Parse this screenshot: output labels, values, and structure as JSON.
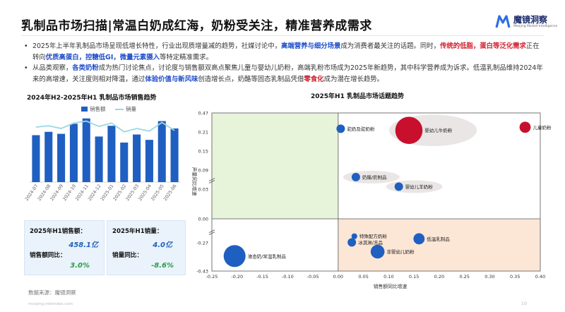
{
  "header": {
    "title": "乳制品市场扫描|常温白奶成红海，奶粉受关注，精准营养成需求",
    "logo_cn": "魔镜洞察",
    "logo_en": "Moojing Market Intelligence"
  },
  "bullets": {
    "dot": "•",
    "b1": {
      "t1": "2025年上半年乳制品市场呈现低增长特性，行业出现质增量减的趋势，社媒讨论中，",
      "h1": "高端营养与细分场景",
      "t2": "成为消费者最关注的话题。同时，",
      "h2": "传统的低脂，蛋白等泛化需求",
      "t3": "正在转向",
      "h3": "优质高蛋白，控糖低GI，微量元素摄入",
      "t4": "等特定精准需求。"
    },
    "b2": {
      "t1": "从品类观察，",
      "h1": "各类奶粉",
      "t2": "成为热门讨论焦点，讨论度与销售额双高点聚焦儿童与婴幼儿奶粉，高端乳粉市场成为2025年新趋势，其中科学营养成为诉求。低温乳制品维持2024年来的高增速，关注度则相对降温，通过",
      "h2": "体验价值与新风味",
      "t3": "创造增长点，奶酪等固态乳制品凭借",
      "h3": "零食化",
      "t4": "成为潜在增长趋势。"
    }
  },
  "left_panel": {
    "subtitle": "2024年H2-2025年H1 乳制品市场销售趋势",
    "legend_bar": "销售额",
    "legend_line": "销量",
    "cards": {
      "sales_label": "2025年H1销售额：",
      "sales_value": "458.1亿",
      "sales_yoy_label": "销售额同比：",
      "sales_yoy_value": "3.0%",
      "volume_label": "2025年H1销量：",
      "volume_value": "4.0亿",
      "volume_yoy_label": "销量同比：",
      "volume_yoy_value": "-8.6%"
    }
  },
  "right_panel": {
    "subtitle": "2025年H1 乳制品市场话题趋势"
  },
  "source": "数据来源：魔镜洞察",
  "footer_url": "moojing.mktindex.com",
  "page_number": "10",
  "colors": {
    "bar": "#1f5fc1",
    "line": "#9cd8e3",
    "red_bubble": "#c8102e",
    "blue_bubble": "#1f5fc1",
    "quad_green": "#e8f4d9",
    "quad_orange": "#fce6d6",
    "brand_blue": "#1f4ec9",
    "brand_red": "#d01f2e"
  },
  "chart_data": [
    {
      "type": "bar",
      "title": "2024年H2-2025年H1 乳制品市场销售趋势",
      "categories": [
        "2024-07",
        "2024-08",
        "2024-09",
        "2024-10",
        "2024-11",
        "2024-12",
        "2025-01",
        "2025-02",
        "2025-03",
        "2025-04",
        "2025-05",
        "2025-06"
      ],
      "series": [
        {
          "name": "销售额",
          "type": "bar",
          "values": [
            70,
            75,
            72,
            87,
            95,
            68,
            84,
            59,
            71,
            63,
            91,
            80
          ]
        },
        {
          "name": "销量",
          "type": "line",
          "values": [
            82,
            84,
            80,
            88,
            91,
            83,
            88,
            75,
            80,
            76,
            89,
            77
          ]
        }
      ],
      "legend": "top-center",
      "grid": false
    },
    {
      "type": "scatter",
      "title": "2025年H1 乳制品市场话题趋势",
      "xlabel": "销售额同比增速",
      "ylabel": "声量同比增速",
      "xlim": [
        -0.25,
        0.4
      ],
      "ylim": [
        -0.43,
        0.47
      ],
      "xticks": [
        "-0.25",
        "-0.20",
        "-0.15",
        "-0.10",
        "-0.05",
        "0.00",
        "0.05",
        "0.10",
        "0.15",
        "0.20",
        "0.25",
        "0.30",
        "0.35",
        "0.40"
      ],
      "yticks": [
        "0.47",
        "0.21",
        "0.15",
        "0.09",
        "0.03",
        "0.00",
        "-0.27",
        "-0.43"
      ],
      "points": [
        {
          "label": "驼奶及驼奶粉",
          "x": 0.005,
          "y": 0.255,
          "size": 2,
          "color": "blue"
        },
        {
          "label": "婴幼儿牛奶粉",
          "x": 0.14,
          "y": 0.232,
          "size": 9,
          "color": "red",
          "halo": true
        },
        {
          "label": "儿童奶粉",
          "x": 0.37,
          "y": 0.275,
          "size": 3,
          "color": "red"
        },
        {
          "label": "奶酪/奶制品",
          "x": 0.035,
          "y": 0.068,
          "size": 2,
          "color": "blue",
          "halo": true
        },
        {
          "label": "婴幼儿羊奶粉",
          "x": 0.12,
          "y": 0.038,
          "size": 2,
          "color": "blue",
          "halo": true
        },
        {
          "label": "特殊配方奶粉",
          "x": 0.032,
          "y": -0.196,
          "size": 1,
          "color": "blue"
        },
        {
          "label": "低温乳制品",
          "x": 0.16,
          "y": -0.225,
          "size": 3,
          "color": "blue"
        },
        {
          "label": "冰淇淋/冻品",
          "x": 0.027,
          "y": -0.265,
          "size": 2,
          "color": "blue"
        },
        {
          "label": "非婴幼儿奶粉",
          "x": 0.078,
          "y": -0.32,
          "size": 4,
          "color": "blue"
        },
        {
          "label": "液态奶/常温乳制品",
          "x": -0.205,
          "y": -0.345,
          "size": 7,
          "color": "blue"
        }
      ],
      "quadrants": {
        "top_left": "green",
        "bottom_right": "orange"
      }
    }
  ]
}
